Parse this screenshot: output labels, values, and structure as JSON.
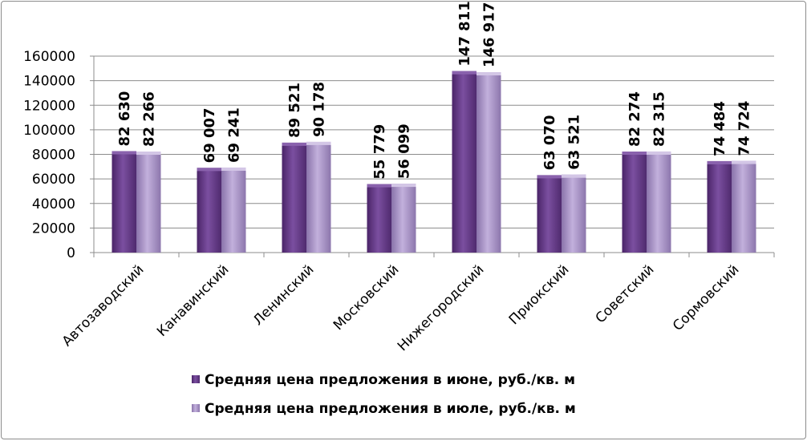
{
  "chart_data": {
    "type": "bar",
    "categories": [
      "Автозаводский",
      "Канавинский",
      "Ленинский",
      "Московский",
      "Нижегородский",
      "Приокский",
      "Советский",
      "Сормовский"
    ],
    "series": [
      {
        "name": "Средняя цена предложения в июне, руб./кв. м",
        "values": [
          82630,
          69007,
          89521,
          55779,
          147811,
          63070,
          82274,
          74484
        ],
        "labels": [
          "82 630",
          "69 007",
          "89 521",
          "55 779",
          "147 811",
          "63 070",
          "82 274",
          "74 484"
        ],
        "color": "#6b3d8c"
      },
      {
        "name": "Средняя цена предложения в июле, руб./кв. м",
        "values": [
          82266,
          69241,
          90178,
          56099,
          146917,
          63521,
          82315,
          74724
        ],
        "labels": [
          "82 266",
          "69 241",
          "90 178",
          "56 099",
          "146 917",
          "63 521",
          "82 315",
          "74 724"
        ],
        "color": "#a58cc4"
      }
    ],
    "yticks": [
      "0",
      "20000",
      "40000",
      "60000",
      "80000",
      "100000",
      "120000",
      "140000",
      "160000"
    ],
    "ylim": [
      0,
      160000
    ],
    "xlabel": "",
    "ylabel": "",
    "grid": true,
    "legend": "bottom"
  }
}
